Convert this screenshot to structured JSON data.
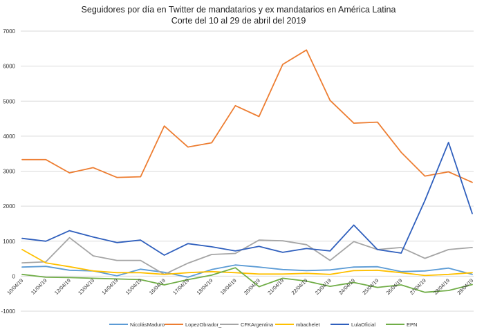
{
  "chart_data": {
    "type": "line",
    "title": "Seguidores por día en Twitter de mandatarios y ex mandatarios en América Latina",
    "subtitle": "Corte del 10 al 29 de abril del 2019",
    "xlabel": "",
    "ylabel": "",
    "ylim": [
      -1000,
      7000
    ],
    "yticks": [
      -1000,
      0,
      1000,
      2000,
      3000,
      4000,
      5000,
      6000,
      7000
    ],
    "grid": true,
    "legend": "bottom",
    "categories": [
      "10/04/19",
      "11/04/19",
      "12/04/19",
      "13/04/19",
      "14/04/19",
      "15/04/19",
      "16/04/19",
      "17/04/19",
      "18/04/19",
      "19/04/19",
      "20/04/19",
      "21/04/19",
      "22/04/19",
      "23/04/19",
      "24/04/19",
      "25/04/19",
      "26/04/19",
      "27/04/19",
      "28/04/19",
      "29/04/19"
    ],
    "series": [
      {
        "name": "NicolásMaduro",
        "color": "#5b9bd5",
        "values": [
          260,
          280,
          170,
          150,
          10,
          200,
          110,
          -30,
          190,
          320,
          260,
          190,
          160,
          180,
          260,
          270,
          130,
          150,
          230,
          50
        ]
      },
      {
        "name": "LopezObrador_",
        "color": "#ed7d31",
        "values": [
          3330,
          3330,
          2950,
          3100,
          2820,
          2840,
          4290,
          3690,
          3810,
          4870,
          4560,
          6050,
          6460,
          5020,
          4370,
          4400,
          3540,
          2860,
          2980,
          2680
        ]
      },
      {
        "name": "CFKArgentina",
        "color": "#a5a5a5",
        "values": [
          380,
          410,
          1100,
          580,
          450,
          450,
          50,
          370,
          620,
          650,
          1030,
          1010,
          900,
          450,
          990,
          760,
          820,
          510,
          760,
          820
        ]
      },
      {
        "name": "mbachelet",
        "color": "#ffc000",
        "values": [
          760,
          380,
          270,
          150,
          100,
          100,
          50,
          100,
          130,
          100,
          60,
          60,
          80,
          50,
          160,
          170,
          100,
          20,
          50,
          100
        ]
      },
      {
        "name": "LulaOficial",
        "color": "#2f5fbd",
        "values": [
          1080,
          1000,
          1300,
          1120,
          960,
          1030,
          600,
          930,
          840,
          720,
          850,
          680,
          790,
          720,
          1460,
          760,
          660,
          2160,
          3820,
          1790
        ]
      },
      {
        "name": "EPN",
        "color": "#70ad47",
        "values": [
          50,
          -30,
          -40,
          -60,
          -80,
          -100,
          -250,
          -100,
          30,
          240,
          -300,
          -60,
          -140,
          -290,
          -180,
          -320,
          -250,
          -460,
          -410,
          -240
        ]
      }
    ]
  }
}
